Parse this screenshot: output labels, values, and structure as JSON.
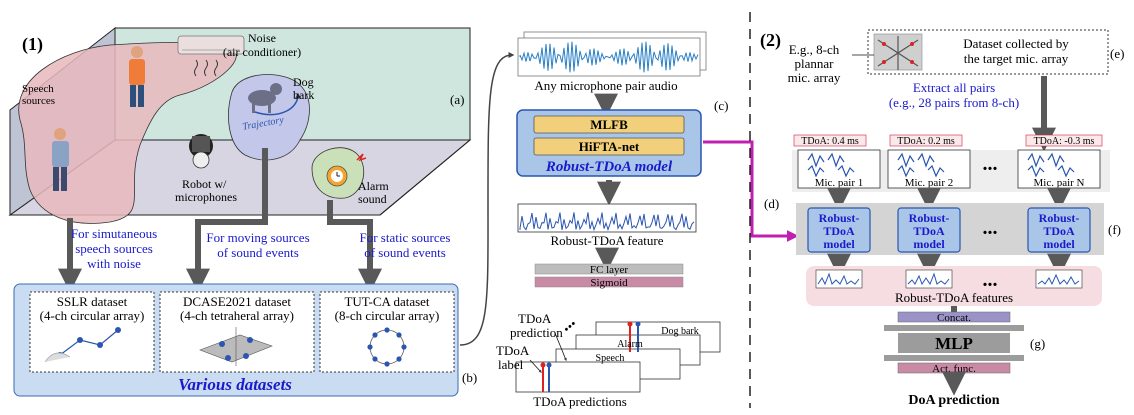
{
  "part1": {
    "number": "(1)",
    "scene_label": "(a)",
    "noise": "Noise",
    "noise_sub": "(air conditioner)",
    "speech": "Speech",
    "speech_sub": "sources",
    "dog": "Dog",
    "dog_sub": "bark",
    "trajectory": "Trajectory",
    "robot": "Robot w/",
    "robot_sub": "microphones",
    "alarm": "Alarm",
    "alarm_sub": "sound",
    "cap_speech": [
      "For simutaneous",
      "speech sources",
      "with noise"
    ],
    "cap_moving": [
      "For moving sources",
      "of sound events"
    ],
    "cap_static": [
      "For static sources",
      "of sound events"
    ],
    "datasets": [
      {
        "name": "SSLR dataset",
        "sub": "(4-ch circular array)"
      },
      {
        "name": "DCASE2021 dataset",
        "sub": "(4-ch tetraheral array)"
      },
      {
        "name": "TUT-CA dataset",
        "sub": "(8-ch circular array)"
      }
    ],
    "datasets_title": "Various datasets",
    "label_b": "(b)"
  },
  "middle": {
    "audio_caption": "Any microphone pair audio",
    "mlfb": "MLFB",
    "hifta": "HiFTA-net",
    "model_title": "Robust-TDoA model",
    "label_c": "(c)",
    "feature_caption": "Robust-TDoA feature",
    "fc": "FC layer",
    "sigmoid": "Sigmoid",
    "tdoa_prediction": [
      "TDoA",
      "prediction"
    ],
    "tdoa_label": [
      "TDoA",
      "label"
    ],
    "dog_bark": "Dog bark",
    "alarm": "Alarm",
    "speech": "Speech",
    "predictions_caption": "TDoA predictions",
    "dots": "..."
  },
  "part2": {
    "number": "(2)",
    "eg": [
      "E.g., 8-ch",
      "plannar",
      "mic. array"
    ],
    "dataset": [
      "Dataset collected by",
      "the target mic. array"
    ],
    "label_e": "(e)",
    "extract": [
      "Extract all pairs",
      "(e.g., 28 pairs from 8-ch)"
    ],
    "tdoa_values": [
      "TDoA: 0.4 ms",
      "TDoA: 0.2 ms",
      "TDoA: -0.3 ms"
    ],
    "pairs": [
      "Mic. pair 1",
      "Mic. pair 2",
      "Mic. pair N"
    ],
    "label_d": "(d)",
    "model_lines": [
      "Robust-",
      "TDoA",
      "model"
    ],
    "label_f": "(f)",
    "features": "Robust-TDoA features",
    "concat": "Concat.",
    "mlp": "MLP",
    "act": "Act. func.",
    "label_g": "(g)",
    "doa": "DoA prediction",
    "ellipsis": "..."
  },
  "colors": {
    "blue_text": "#1a1acc",
    "model_fill": "#a9c6e8",
    "model_border": "#2a55b0",
    "gold": "#f2cf7a",
    "datasets_bg": "#c9dcf1",
    "pink_room": "#e7b9bd",
    "green_wall": "#cfe6df",
    "arrow_gray": "#595959",
    "magenta": "#c020b0",
    "pink_panel": "#f6dde1",
    "gray_panel": "#d4d4d4",
    "concat_purple": "#9a93c8",
    "act_pink": "#c98aa6"
  }
}
